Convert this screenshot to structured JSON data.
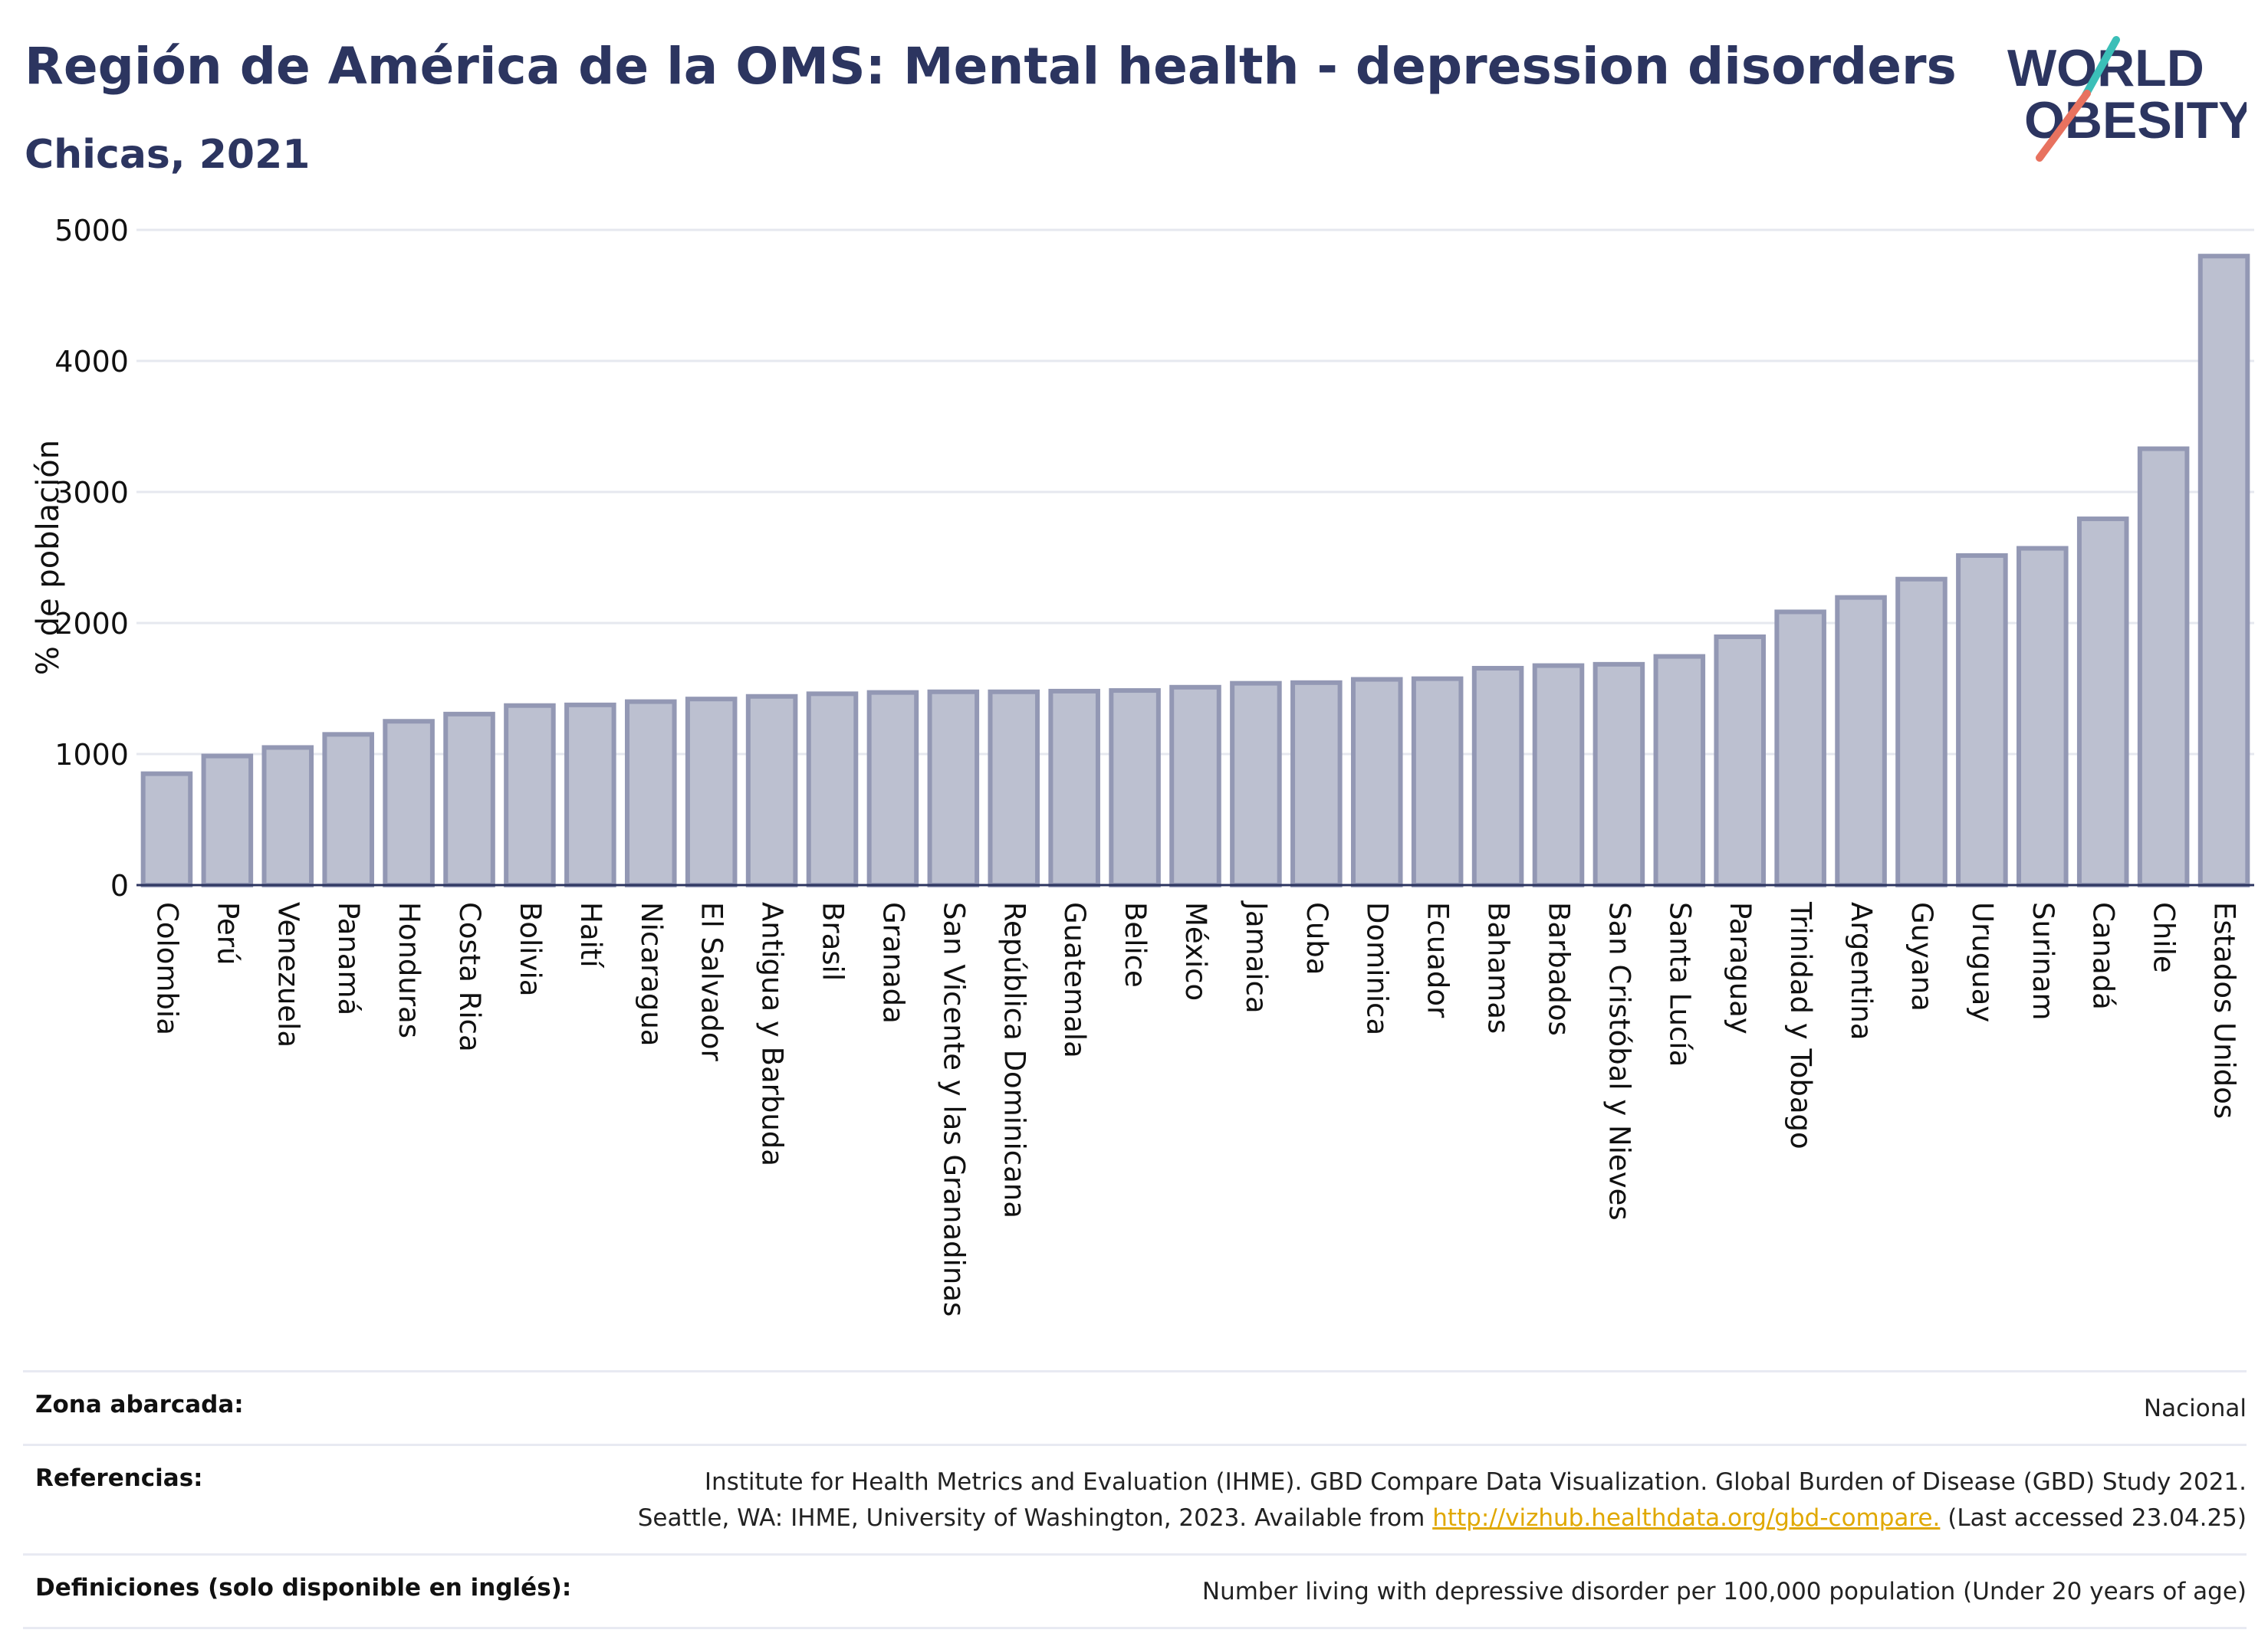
{
  "title": "Región de América de la OMS: Mental health - depression disorders",
  "subtitle": "Chicas, 2021",
  "logo": {
    "line1": "WORLD",
    "line2": "OBESITY"
  },
  "colors": {
    "bar_fill": "#bcc0d0",
    "bar_stroke": "#9398b4",
    "title": "#2c3560",
    "link": "#e0a800",
    "logo_teal": "#3bbfb8",
    "logo_coral": "#e8725f"
  },
  "chart_data": {
    "type": "bar",
    "ylabel": "% de población",
    "ylim": [
      0,
      5000
    ],
    "yticks": [
      0,
      1000,
      2000,
      3000,
      4000,
      5000
    ],
    "grid": true,
    "categories": [
      "Colombia",
      "Perú",
      "Venezuela",
      "Panamá",
      "Honduras",
      "Costa Rica",
      "Bolivia",
      "Haití",
      "Nicaragua",
      "El Salvador",
      "Antigua y Barbuda",
      "Brasil",
      "Granada",
      "San Vicente y las Granadinas",
      "República Dominicana",
      "Guatemala",
      "Belice",
      "México",
      "Jamaica",
      "Cuba",
      "Dominica",
      "Ecuador",
      "Bahamas",
      "Barbados",
      "San Cristóbal y Nieves",
      "Santa Lucía",
      "Paraguay",
      "Trinidad y Tobago",
      "Argentina",
      "Guyana",
      "Uruguay",
      "Surinam",
      "Canadá",
      "Chile",
      "Estados Unidos"
    ],
    "values": [
      850,
      985,
      1050,
      1150,
      1250,
      1305,
      1370,
      1375,
      1400,
      1420,
      1440,
      1460,
      1470,
      1475,
      1475,
      1480,
      1485,
      1510,
      1540,
      1545,
      1570,
      1575,
      1655,
      1675,
      1685,
      1745,
      1895,
      2085,
      2195,
      2335,
      2515,
      2570,
      2795,
      3330,
      4800
    ]
  },
  "footer": {
    "area_label": "Zona abarcada:",
    "area_value": "Nacional",
    "refs_label": "Referencias:",
    "refs_line1": "Institute for Health Metrics and Evaluation (IHME). GBD Compare Data Visualization. Global Burden of Disease (GBD) Study 2021.",
    "refs_line2_pre": "Seattle, WA: IHME, University of Washington, 2023. Available from ",
    "refs_link": "http://vizhub.healthdata.org/gbd-compare.",
    "refs_line2_post": " (Last accessed 23.04.25)",
    "defs_label": "Definiciones (solo disponible en inglés):",
    "defs_value": "Number living with depressive disorder per 100,000 population (Under 20 years of age)"
  }
}
